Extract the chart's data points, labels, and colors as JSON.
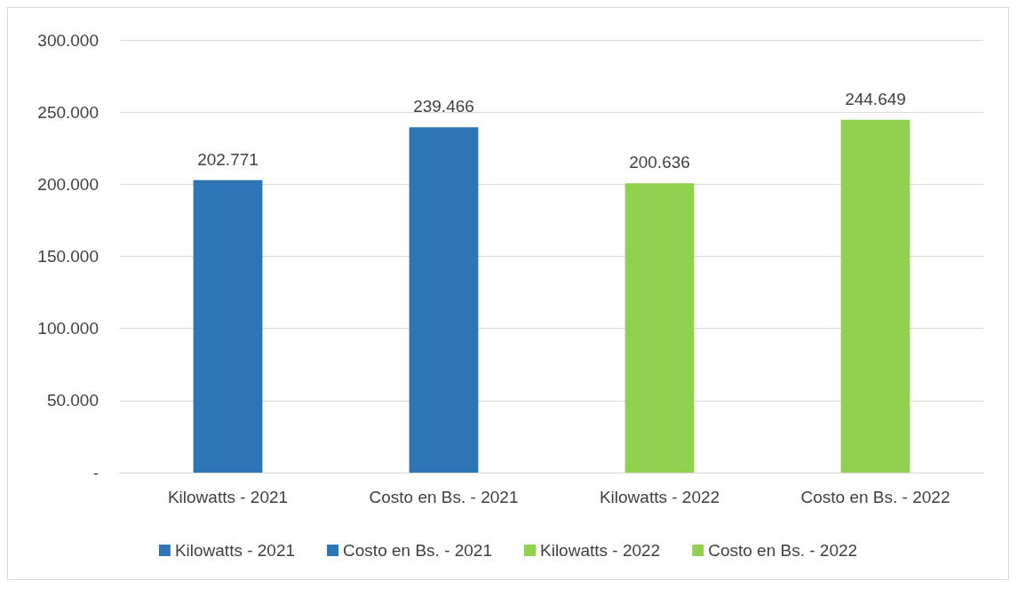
{
  "chart_data": {
    "type": "bar",
    "categories": [
      "Kilowatts - 2021",
      "Costo en Bs. - 2021",
      "Kilowatts - 2022",
      "Costo en Bs. - 2022"
    ],
    "series": [
      {
        "name": "Kilowatts - 2021",
        "color": "#2e75b6",
        "values": [
          202771,
          null,
          null,
          null
        ],
        "value_labels": [
          "202.771",
          null,
          null,
          null
        ]
      },
      {
        "name": "Costo en Bs. - 2021",
        "color": "#2e75b6",
        "values": [
          null,
          239466,
          null,
          null
        ],
        "value_labels": [
          null,
          "239.466",
          null,
          null
        ]
      },
      {
        "name": "Kilowatts - 2022",
        "color": "#92d050",
        "values": [
          null,
          null,
          200636,
          null
        ],
        "value_labels": [
          null,
          null,
          "200.636",
          null
        ]
      },
      {
        "name": "Costo en Bs. - 2022",
        "color": "#92d050",
        "values": [
          null,
          null,
          null,
          244649
        ],
        "value_labels": [
          null,
          null,
          null,
          "244.649"
        ]
      }
    ],
    "ylim": [
      0,
      300000
    ],
    "yticks": [
      {
        "value": 0,
        "label": "-"
      },
      {
        "value": 50000,
        "label": "50.000"
      },
      {
        "value": 100000,
        "label": "100.000"
      },
      {
        "value": 150000,
        "label": "150.000"
      },
      {
        "value": 200000,
        "label": "200.000"
      },
      {
        "value": 250000,
        "label": "250.000"
      },
      {
        "value": 300000,
        "label": "300.000"
      }
    ],
    "grid": "y",
    "legend": "bottom"
  }
}
